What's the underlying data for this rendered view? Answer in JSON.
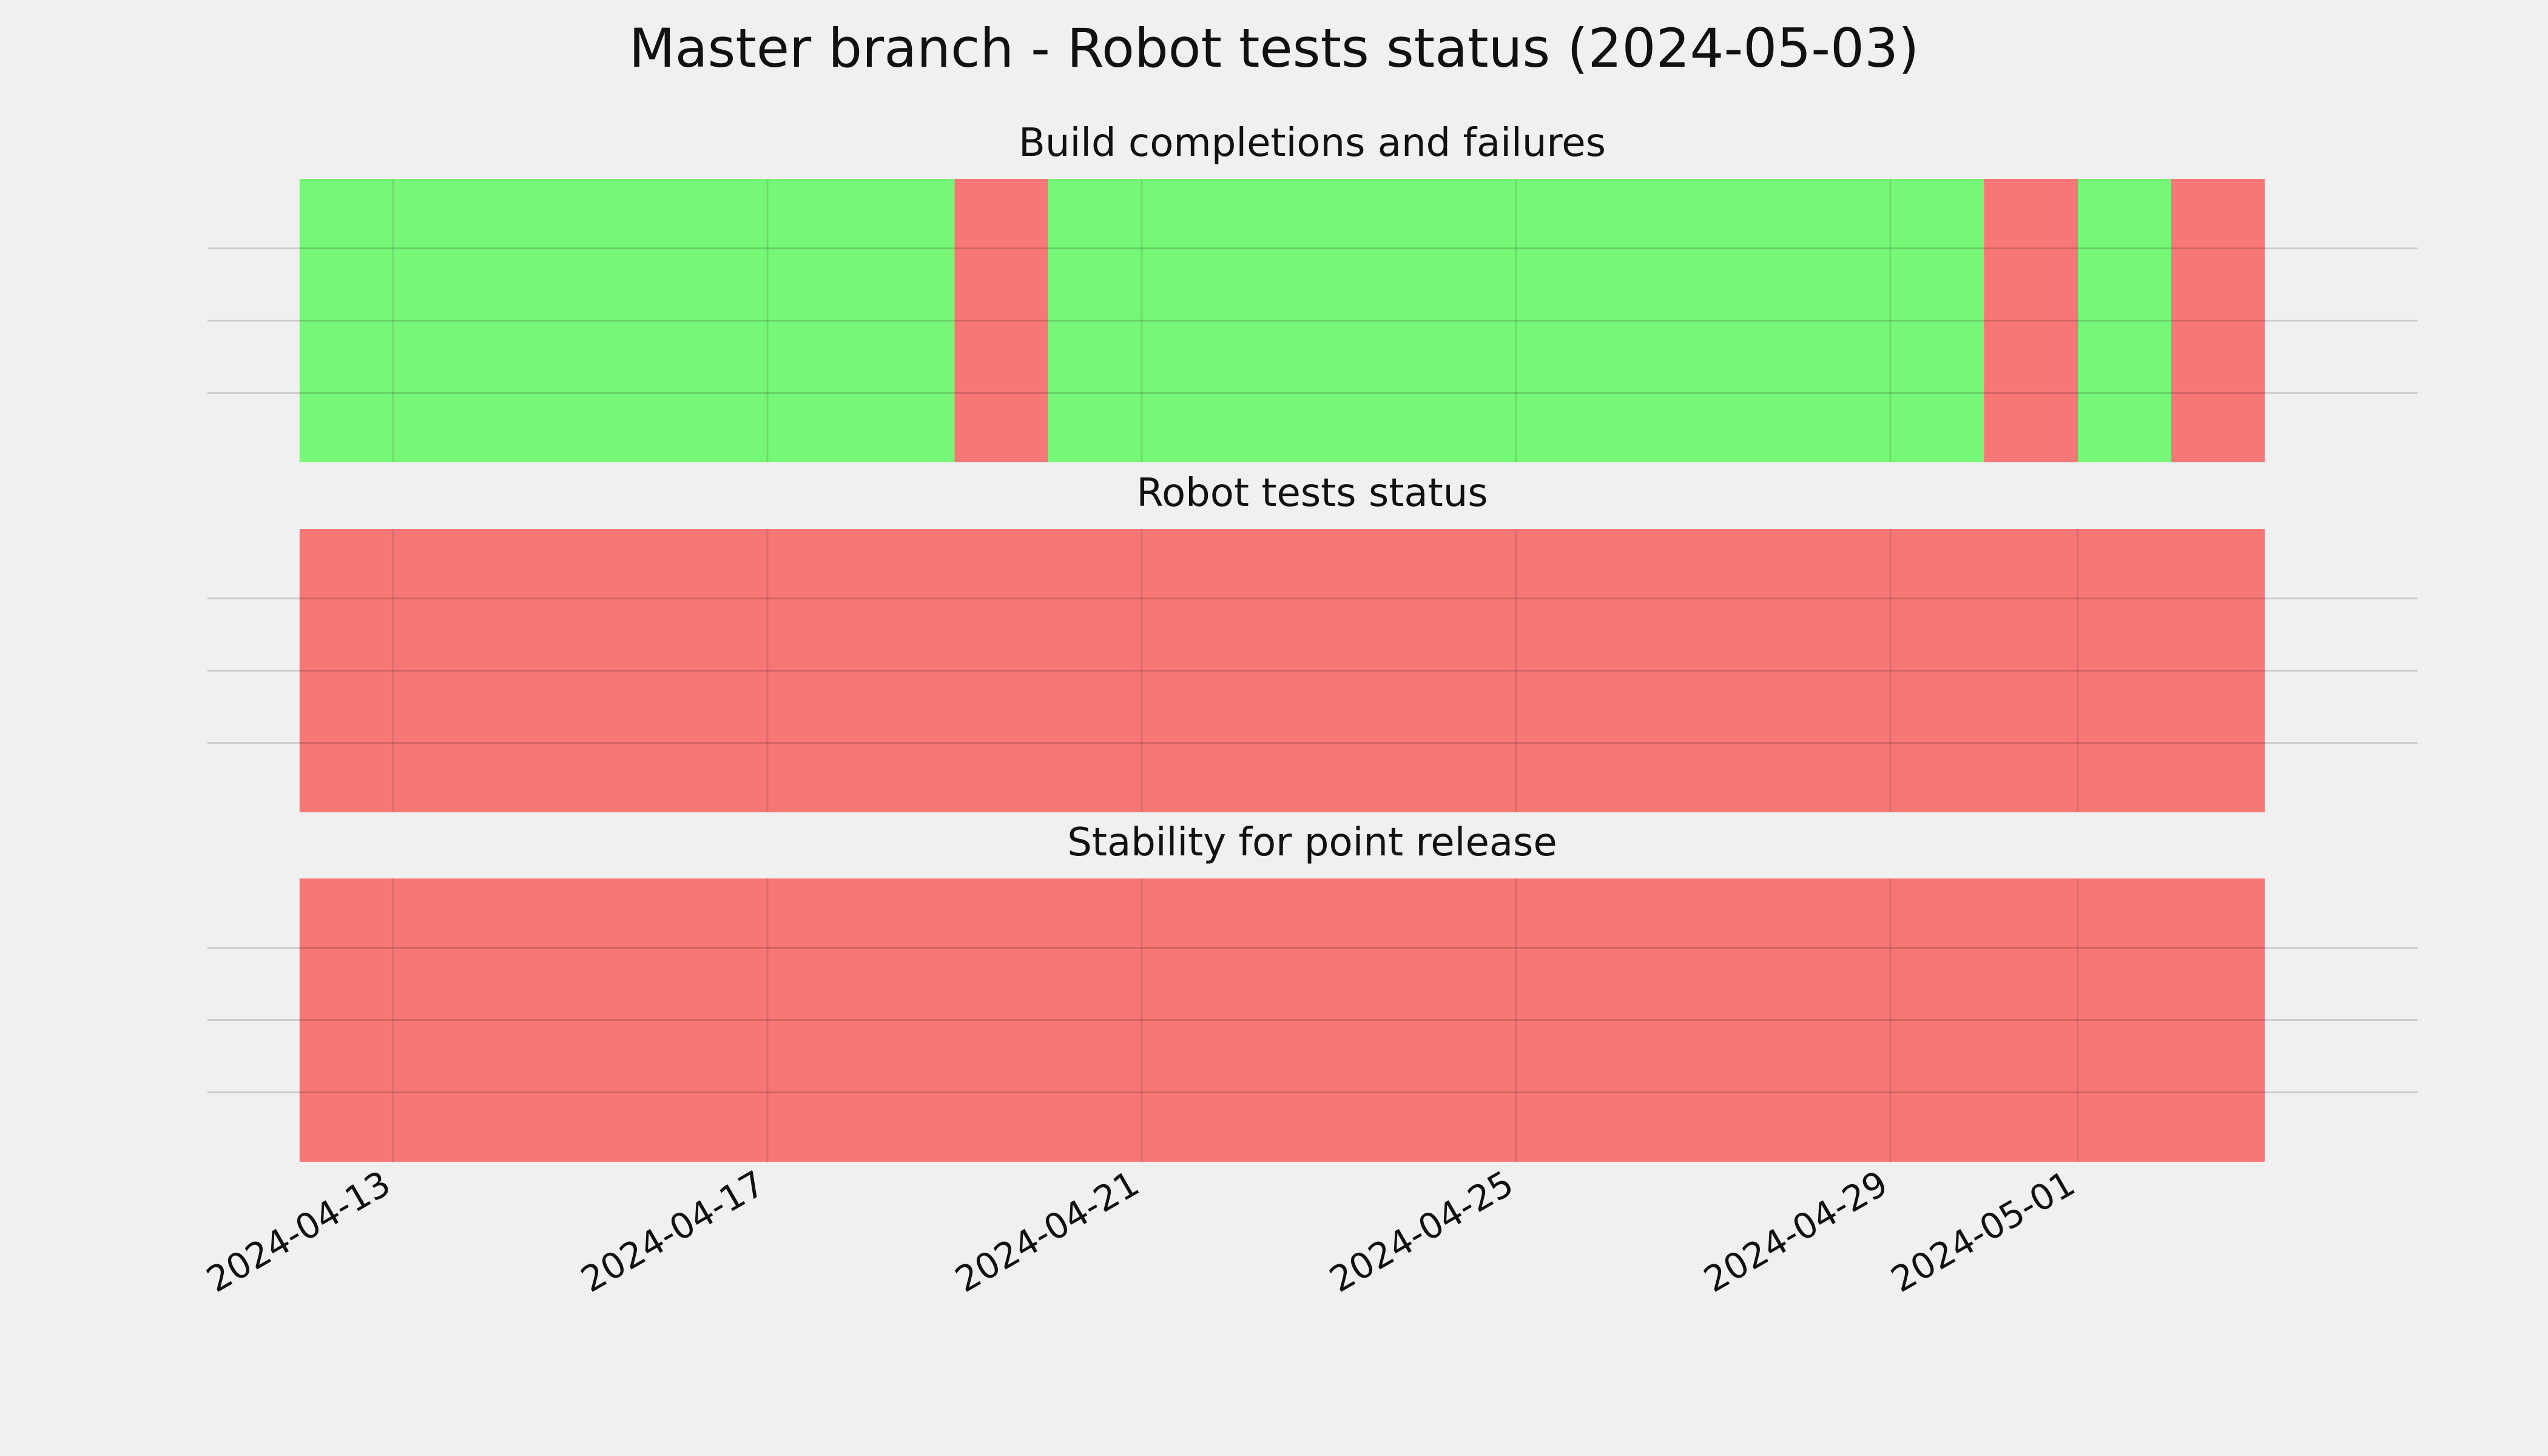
{
  "chart_data": {
    "type": "timeline",
    "title": "Master branch - Robot tests status (2024-05-03)",
    "x_axis": {
      "type": "date",
      "range": [
        "2024-04-11",
        "2024-05-03"
      ],
      "ticks": [
        "2024-04-13",
        "2024-04-17",
        "2024-04-21",
        "2024-04-25",
        "2024-04-29",
        "2024-05-01"
      ]
    },
    "grid": true,
    "colors": {
      "pass": "#77f777",
      "fail": "#f77777",
      "background": "#f0f0f0"
    },
    "panels": [
      {
        "title": "Build completions and failures",
        "segments": [
          {
            "start": "2024-04-12",
            "end": "2024-04-19",
            "status": "pass"
          },
          {
            "start": "2024-04-19",
            "end": "2024-04-20",
            "status": "fail"
          },
          {
            "start": "2024-04-20",
            "end": "2024-04-30",
            "status": "pass"
          },
          {
            "start": "2024-04-30",
            "end": "2024-05-01",
            "status": "fail"
          },
          {
            "start": "2024-05-01",
            "end": "2024-05-02",
            "status": "pass"
          },
          {
            "start": "2024-05-02",
            "end": "2024-05-03",
            "status": "fail"
          }
        ]
      },
      {
        "title": "Robot tests status",
        "segments": [
          {
            "start": "2024-04-12",
            "end": "2024-05-03",
            "status": "fail"
          }
        ]
      },
      {
        "title": "Stability for point release",
        "segments": [
          {
            "start": "2024-04-12",
            "end": "2024-05-03",
            "status": "fail"
          }
        ]
      }
    ]
  }
}
